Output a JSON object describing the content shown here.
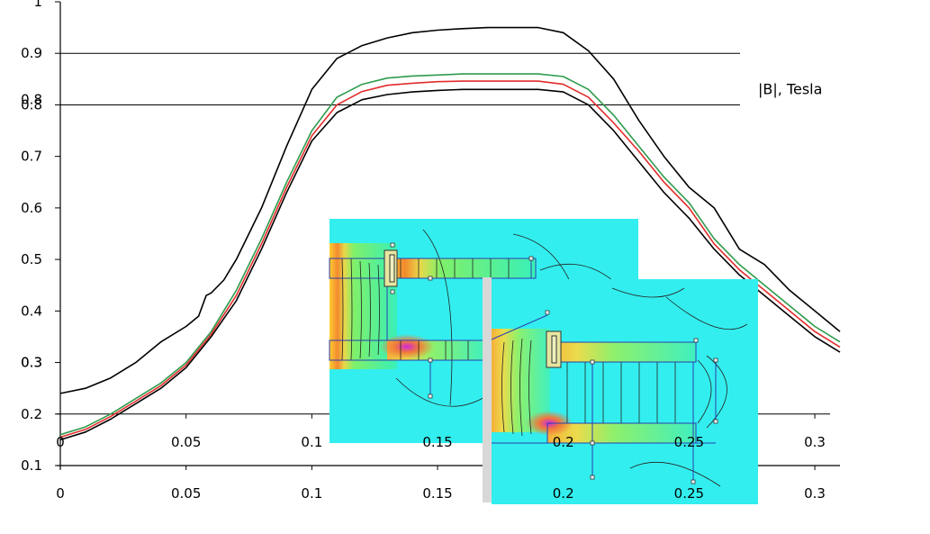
{
  "chart_data": {
    "type": "line",
    "units_label": "|B|, Tesla",
    "xlim": [
      0,
      0.31
    ],
    "ylim": [
      0.1,
      1.0
    ],
    "x_ticks": [
      "0",
      "0.05",
      "0.1",
      "0.15",
      "0.2",
      "0.25",
      "0.3"
    ],
    "x_tick_values": [
      0,
      0.05,
      0.1,
      0.15,
      0.2,
      0.25,
      0.3
    ],
    "y_ticks": [
      "0.1",
      "0.2",
      "0.3",
      "0.4",
      "0.5",
      "0.6",
      "0.7",
      "0.8",
      "0.9",
      "1"
    ],
    "y_tick_values": [
      0.1,
      0.2,
      0.3,
      0.4,
      0.5,
      0.6,
      0.7,
      0.8,
      0.9,
      1.0
    ],
    "reference_lines_y": [
      0.9,
      0.8
    ],
    "offset_axis": {
      "y": 0.2,
      "ticks": [
        "0",
        "0.05",
        "0.1",
        "0.15",
        "0.2",
        "0.25",
        "0.3"
      ],
      "tick_values": [
        0,
        0.05,
        0.1,
        0.15,
        0.2,
        0.25,
        0.3
      ],
      "ghost_y_ticks": [
        "0.8",
        "0.3"
      ],
      "ghost_y_values": [
        0.81,
        0.3
      ]
    },
    "series": [
      {
        "color": "#000000",
        "x": [
          0,
          0.01,
          0.02,
          0.03,
          0.04,
          0.05,
          0.055,
          0.058,
          0.06,
          0.065,
          0.07,
          0.08,
          0.09,
          0.1,
          0.11,
          0.12,
          0.13,
          0.14,
          0.15,
          0.16,
          0.17,
          0.18,
          0.19,
          0.2,
          0.21,
          0.22,
          0.23,
          0.24,
          0.25,
          0.26,
          0.27,
          0.28,
          0.29,
          0.3,
          0.31
        ],
        "y": [
          0.24,
          0.25,
          0.27,
          0.3,
          0.34,
          0.37,
          0.39,
          0.43,
          0.435,
          0.46,
          0.5,
          0.6,
          0.72,
          0.83,
          0.89,
          0.915,
          0.93,
          0.94,
          0.945,
          0.948,
          0.95,
          0.95,
          0.95,
          0.94,
          0.905,
          0.85,
          0.77,
          0.7,
          0.64,
          0.6,
          0.52,
          0.49,
          0.44,
          0.4,
          0.36
        ]
      },
      {
        "color": "#2e9b4c",
        "x": [
          0,
          0.01,
          0.02,
          0.03,
          0.04,
          0.05,
          0.06,
          0.07,
          0.08,
          0.09,
          0.1,
          0.11,
          0.12,
          0.13,
          0.14,
          0.15,
          0.16,
          0.17,
          0.18,
          0.19,
          0.2,
          0.21,
          0.22,
          0.23,
          0.24,
          0.25,
          0.26,
          0.27,
          0.28,
          0.29,
          0.3,
          0.31
        ],
        "y": [
          0.16,
          0.175,
          0.2,
          0.23,
          0.26,
          0.3,
          0.36,
          0.44,
          0.54,
          0.65,
          0.75,
          0.815,
          0.84,
          0.852,
          0.856,
          0.858,
          0.86,
          0.86,
          0.86,
          0.86,
          0.855,
          0.83,
          0.78,
          0.72,
          0.66,
          0.61,
          0.54,
          0.49,
          0.45,
          0.41,
          0.37,
          0.34
        ]
      },
      {
        "color": "#e32b2b",
        "x": [
          0,
          0.01,
          0.02,
          0.03,
          0.04,
          0.05,
          0.06,
          0.07,
          0.08,
          0.09,
          0.1,
          0.11,
          0.12,
          0.13,
          0.14,
          0.15,
          0.16,
          0.17,
          0.18,
          0.19,
          0.2,
          0.21,
          0.22,
          0.23,
          0.24,
          0.25,
          0.26,
          0.27,
          0.28,
          0.29,
          0.3,
          0.31
        ],
        "y": [
          0.155,
          0.17,
          0.195,
          0.225,
          0.255,
          0.295,
          0.355,
          0.43,
          0.53,
          0.64,
          0.74,
          0.8,
          0.826,
          0.838,
          0.842,
          0.845,
          0.846,
          0.846,
          0.846,
          0.846,
          0.84,
          0.815,
          0.765,
          0.71,
          0.65,
          0.6,
          0.53,
          0.48,
          0.44,
          0.4,
          0.36,
          0.33
        ]
      },
      {
        "color": "#000000",
        "x": [
          0,
          0.01,
          0.02,
          0.03,
          0.04,
          0.05,
          0.06,
          0.07,
          0.08,
          0.09,
          0.1,
          0.11,
          0.12,
          0.13,
          0.14,
          0.15,
          0.16,
          0.17,
          0.18,
          0.19,
          0.2,
          0.21,
          0.22,
          0.23,
          0.24,
          0.25,
          0.26,
          0.27,
          0.28,
          0.29,
          0.3,
          0.31
        ],
        "y": [
          0.15,
          0.165,
          0.19,
          0.22,
          0.25,
          0.29,
          0.35,
          0.42,
          0.52,
          0.63,
          0.73,
          0.785,
          0.81,
          0.82,
          0.825,
          0.828,
          0.83,
          0.83,
          0.83,
          0.83,
          0.825,
          0.8,
          0.75,
          0.69,
          0.63,
          0.58,
          0.52,
          0.47,
          0.43,
          0.39,
          0.35,
          0.32
        ]
      }
    ]
  },
  "insets": [
    {
      "name": "field-plot-left"
    },
    {
      "name": "field-plot-right"
    }
  ]
}
